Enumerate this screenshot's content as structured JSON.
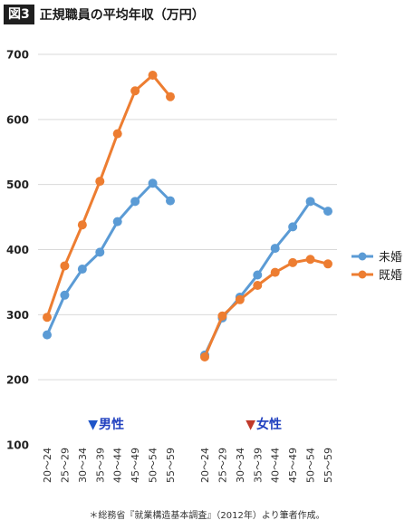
{
  "header": {
    "badge": "図3",
    "title": "正規職員の平均年収（万円）"
  },
  "footnote": "＊総務省『就業構造基本調査』（2012年）より筆者作成。",
  "colors": {
    "unmarried": "#5b9bd5",
    "married": "#ed7d31",
    "group_label": "#1f3fbf",
    "triangle_male": "#1f55c8",
    "triangle_female": "#c0392b",
    "grid": "#d9d9d9"
  },
  "chart_data": {
    "type": "line",
    "ylim": [
      100,
      700
    ],
    "yticks": [
      100,
      200,
      300,
      400,
      500,
      600,
      700
    ],
    "categories": [
      "20～24",
      "25～29",
      "30～34",
      "35～39",
      "40～44",
      "45～49",
      "50～54",
      "55～59"
    ],
    "legend": {
      "position": "right",
      "entries": [
        "未婚",
        "既婚"
      ]
    },
    "grid": true,
    "groups": [
      {
        "label": "▼男性",
        "marker": "▼",
        "name": "男性",
        "series": [
          {
            "name": "未婚",
            "values": [
              269,
              330,
              370,
              396,
              443,
              474,
              502,
              475
            ]
          },
          {
            "name": "既婚",
            "values": [
              296,
              375,
              438,
              505,
              578,
              644,
              668,
              635
            ]
          }
        ]
      },
      {
        "label": "▼女性",
        "marker": "▼",
        "name": "女性",
        "series": [
          {
            "name": "未婚",
            "values": [
              238,
              295,
              327,
              361,
              402,
              435,
              474,
              459
            ]
          },
          {
            "name": "既婚",
            "values": [
              235,
              298,
              323,
              345,
              365,
              380,
              385,
              378
            ]
          }
        ]
      }
    ]
  }
}
